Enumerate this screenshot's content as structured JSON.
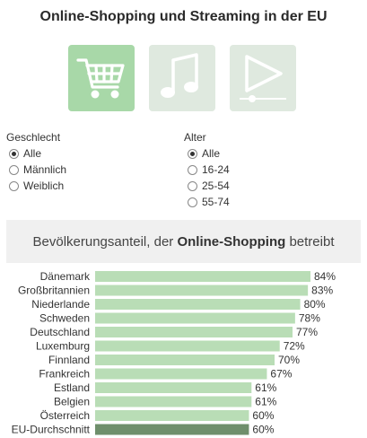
{
  "header": {
    "title": "Online-Shopping und Streaming in der EU"
  },
  "category_tiles": [
    {
      "icon": "shopping-cart-icon",
      "state": "selected"
    },
    {
      "icon": "music-note-icon",
      "state": "unselected"
    },
    {
      "icon": "video-play-icon",
      "state": "unselected"
    }
  ],
  "colors": {
    "tile_selected": "#a8d8a8",
    "tile_unselected": "#dfe9df",
    "icon": "#ffffff",
    "bar": "#b9ddb6",
    "bar_highlight": "#6f8f6c",
    "subtitle_bg": "#f0f0f0"
  },
  "filters": {
    "gender": {
      "label": "Geschlecht",
      "options": [
        "Alle",
        "Männlich",
        "Weiblich"
      ],
      "selected": "Alle"
    },
    "age": {
      "label": "Alter",
      "options": [
        "Alle",
        "16-24",
        "25-54",
        "55-74"
      ],
      "selected": "Alle"
    }
  },
  "subtitle": {
    "prefix": "Bevölkerungsanteil, der ",
    "emphasis": "Online-Shopping",
    "suffix": " betreibt"
  },
  "chart_data": {
    "type": "bar",
    "orientation": "horizontal",
    "title": "",
    "categories": [
      "Dänemark",
      "Großbritannien",
      "Niederlande",
      "Schweden",
      "Deutschland",
      "Luxemburg",
      "Finnland",
      "Frankreich",
      "Estland",
      "Belgien",
      "Österreich",
      "EU-Durchschnitt"
    ],
    "values": [
      84,
      83,
      80,
      78,
      77,
      72,
      70,
      67,
      61,
      61,
      60,
      60
    ],
    "value_labels": [
      "84%",
      "83%",
      "80%",
      "78%",
      "77%",
      "72%",
      "70%",
      "67%",
      "61%",
      "61%",
      "60%",
      "60%"
    ],
    "unit": "%",
    "highlight_category": "EU-Durchschnitt",
    "grid": false,
    "legend": "none"
  }
}
